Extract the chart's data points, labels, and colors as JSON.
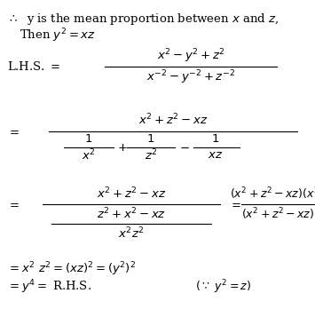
{
  "figsize": [
    3.55,
    3.57
  ],
  "dpi": 100,
  "bg": "#ffffff",
  "fc": "black",
  "fs": 9.5
}
